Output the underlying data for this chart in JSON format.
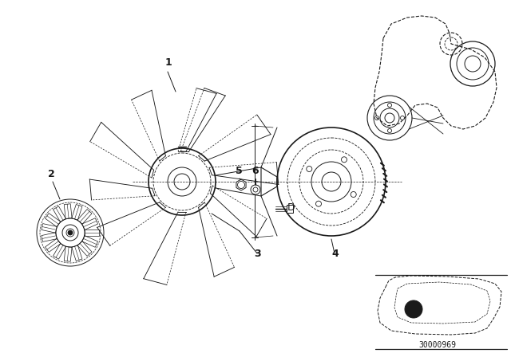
{
  "bg_color": "#ffffff",
  "line_color": "#1a1a1a",
  "fig_width": 6.4,
  "fig_height": 4.48,
  "dpi": 100,
  "watermark_text": "30000969"
}
